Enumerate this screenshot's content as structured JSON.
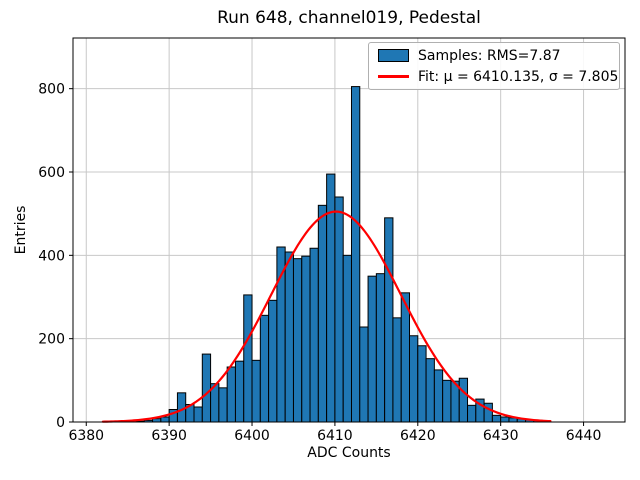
{
  "chart_data": {
    "type": "histogram",
    "title": "Run 648, channel019, Pedestal",
    "xlabel": "ADC Counts",
    "ylabel": "Entries",
    "xlim": [
      6378.4,
      6445.0
    ],
    "ylim": [
      0,
      921.6
    ],
    "xticks": [
      6380,
      6390,
      6400,
      6410,
      6420,
      6430,
      6440
    ],
    "yticks": [
      0,
      200,
      400,
      600,
      800
    ],
    "grid": true,
    "grid_color": "#c8c8c8",
    "bar_color": "#1f77b4",
    "bar_edge_color": "#000000",
    "bin_start": 6386,
    "bin_width": 1,
    "counts": [
      2,
      4,
      8,
      12,
      30,
      70,
      42,
      36,
      163,
      92,
      82,
      132,
      146,
      305,
      148,
      256,
      292,
      420,
      408,
      392,
      398,
      417,
      520,
      595,
      540,
      400,
      805,
      228,
      350,
      356,
      490,
      250,
      310,
      207,
      183,
      152,
      125,
      100,
      98,
      105,
      40,
      55,
      45,
      16,
      12,
      10,
      8,
      5,
      4,
      3
    ],
    "fit": {
      "type": "gaussian",
      "mu": 6410.135,
      "sigma": 7.805,
      "amplitude": 505,
      "color": "#ff0000",
      "domain": [
        6382,
        6436
      ]
    },
    "legend": {
      "position": "upper right",
      "entries": [
        {
          "label": "Samples: RMS=7.87",
          "swatch": "box"
        },
        {
          "label": "Fit: μ = 6410.135, σ = 7.805",
          "swatch": "line"
        }
      ]
    }
  }
}
